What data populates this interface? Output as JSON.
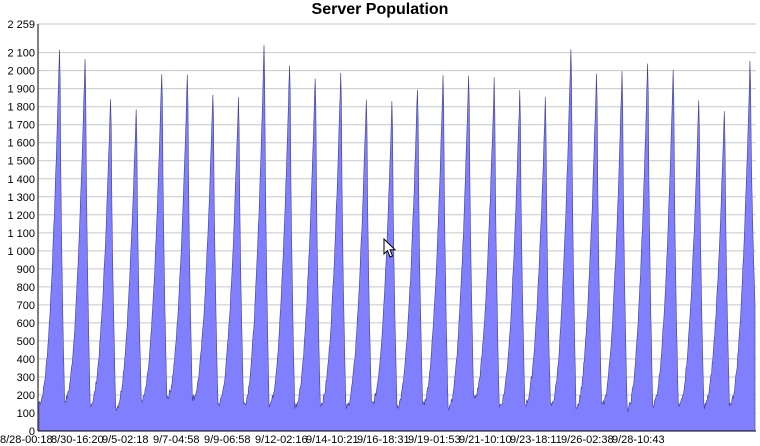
{
  "chart_data": {
    "type": "area",
    "title": "Server Population",
    "xlabel": "",
    "ylabel": "",
    "ylim": [
      0,
      2259
    ],
    "yticks": [
      0,
      100,
      200,
      300,
      400,
      500,
      600,
      700,
      800,
      900,
      1000,
      1100,
      1200,
      1300,
      1400,
      1500,
      1600,
      1700,
      1800,
      1900,
      2000,
      2100,
      2259
    ],
    "ytick_labels": [
      "0",
      "100",
      "200",
      "300",
      "400",
      "500",
      "600",
      "700",
      "800",
      "900",
      "1 000",
      "1 100",
      "1 200",
      "1 300",
      "1 400",
      "1 500",
      "1 600",
      "1 700",
      "1 800",
      "1 900",
      "2 000",
      "2 100",
      "2 259"
    ],
    "xtick_labels": [
      "8/28-00:18",
      "8/30-16:20",
      "9/5-02:18",
      "9/7-04:58",
      "9/9-06:58",
      "9/12-02:16",
      "9/14-10:21",
      "9/16-18:31",
      "9/19-01:53",
      "9/21-10:10",
      "9/23-18:11",
      "9/26-02:38",
      "9/28-10:43"
    ],
    "grid": true,
    "series": [
      {
        "fill_color": "#8080ff",
        "stroke_color": "#3c3c8c",
        "daily_peaks": [
          2240,
          2180,
          1950,
          1890,
          2100,
          2080,
          1970,
          1950,
          2250,
          2150,
          2070,
          2100,
          1940,
          1910,
          2010,
          2070,
          2090,
          2050,
          1980,
          1940,
          2250,
          2100,
          2110,
          2150,
          2100,
          1930,
          1860,
          2140
        ],
        "daily_troughs": [
          160,
          170,
          150,
          130,
          170,
          190,
          180,
          150,
          150,
          150,
          140,
          150,
          130,
          150,
          140,
          150,
          130,
          180,
          140,
          150,
          140,
          140,
          140,
          120,
          150,
          140,
          140,
          150,
          700
        ]
      }
    ]
  },
  "cursor": {
    "icon": "arrow-cursor-icon"
  }
}
